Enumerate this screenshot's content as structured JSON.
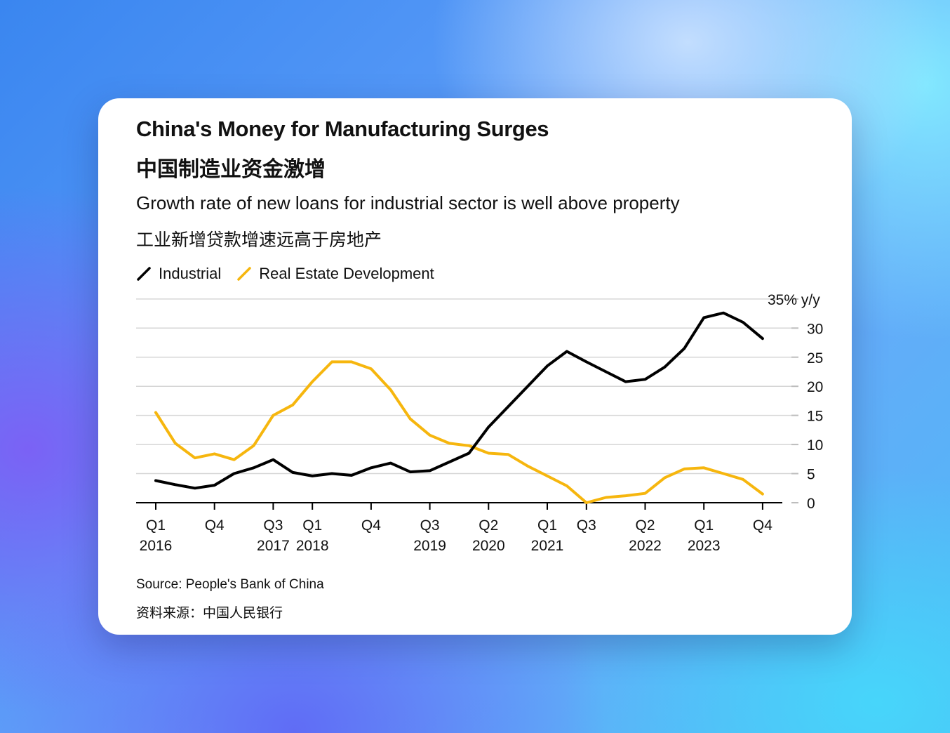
{
  "chart_data": {
    "type": "line",
    "title": "China's Money for Manufacturing Surges",
    "title_cn": "中国制造业资金激增",
    "subtitle": "Growth rate of new loans for industrial sector is well above property",
    "subtitle_cn": "工业新增贷款增速远高于房地产",
    "ylabel": "",
    "unit_label": "35% y/y",
    "ylim": [
      0,
      35
    ],
    "yticks": [
      "30",
      "25",
      "20",
      "15",
      "10",
      "5",
      "0"
    ],
    "legend_position": "top-left",
    "grid": true,
    "x": [
      "2016Q1",
      "2016Q2",
      "2016Q3",
      "2016Q4",
      "2017Q1",
      "2017Q2",
      "2017Q3",
      "2017Q4",
      "2018Q1",
      "2018Q2",
      "2018Q3",
      "2018Q4",
      "2019Q1",
      "2019Q2",
      "2019Q3",
      "2019Q4",
      "2020Q1",
      "2020Q2",
      "2020Q3",
      "2020Q4",
      "2021Q1",
      "2021Q2",
      "2021Q3",
      "2021Q4",
      "2022Q1",
      "2022Q2",
      "2022Q3",
      "2022Q4",
      "2023Q1",
      "2023Q2",
      "2023Q3",
      "2023Q4"
    ],
    "xtick_labels": [
      {
        "top": "Q1",
        "bottom": "2016"
      },
      {
        "top": "Q4",
        "bottom": ""
      },
      {
        "top": "Q3",
        "bottom": "2017"
      },
      {
        "top": "Q1",
        "bottom": "2018"
      },
      {
        "top": "Q4",
        "bottom": ""
      },
      {
        "top": "Q3",
        "bottom": "2019"
      },
      {
        "top": "Q2",
        "bottom": "2020"
      },
      {
        "top": "Q1",
        "bottom": "2021"
      },
      {
        "top": "Q3",
        "bottom": ""
      },
      {
        "top": "Q2",
        "bottom": "2022"
      },
      {
        "top": "Q1",
        "bottom": "2023"
      },
      {
        "top": "Q4",
        "bottom": ""
      }
    ],
    "xtick_index": [
      0,
      3,
      6,
      8,
      11,
      14,
      17,
      20,
      22,
      25,
      28,
      31
    ],
    "series": [
      {
        "name": "Industrial",
        "color": "#000000",
        "values": [
          3.8,
          3.1,
          2.5,
          3.0,
          5.0,
          6.0,
          7.4,
          5.2,
          4.6,
          5.0,
          4.7,
          6.0,
          6.8,
          5.3,
          5.5,
          7.0,
          8.5,
          13.0,
          16.5,
          20.0,
          23.5,
          26.0,
          24.2,
          22.5,
          20.8,
          21.2,
          23.3,
          26.5,
          31.8,
          32.6,
          31.0,
          28.2
        ]
      },
      {
        "name": "Real Estate Development",
        "color": "#f6b60e",
        "values": [
          15.5,
          10.2,
          7.7,
          8.4,
          7.4,
          9.8,
          15.0,
          16.8,
          20.8,
          24.2,
          24.2,
          23.0,
          19.4,
          14.4,
          11.6,
          10.2,
          9.8,
          8.5,
          8.3,
          6.3,
          4.6,
          2.9,
          0.0,
          0.9,
          1.2,
          1.6,
          4.3,
          5.8,
          6.0,
          5.0,
          4.0,
          1.5
        ]
      }
    ]
  },
  "source": "Source: People's Bank of China",
  "source_cn": "资料来源：中国人民银行"
}
